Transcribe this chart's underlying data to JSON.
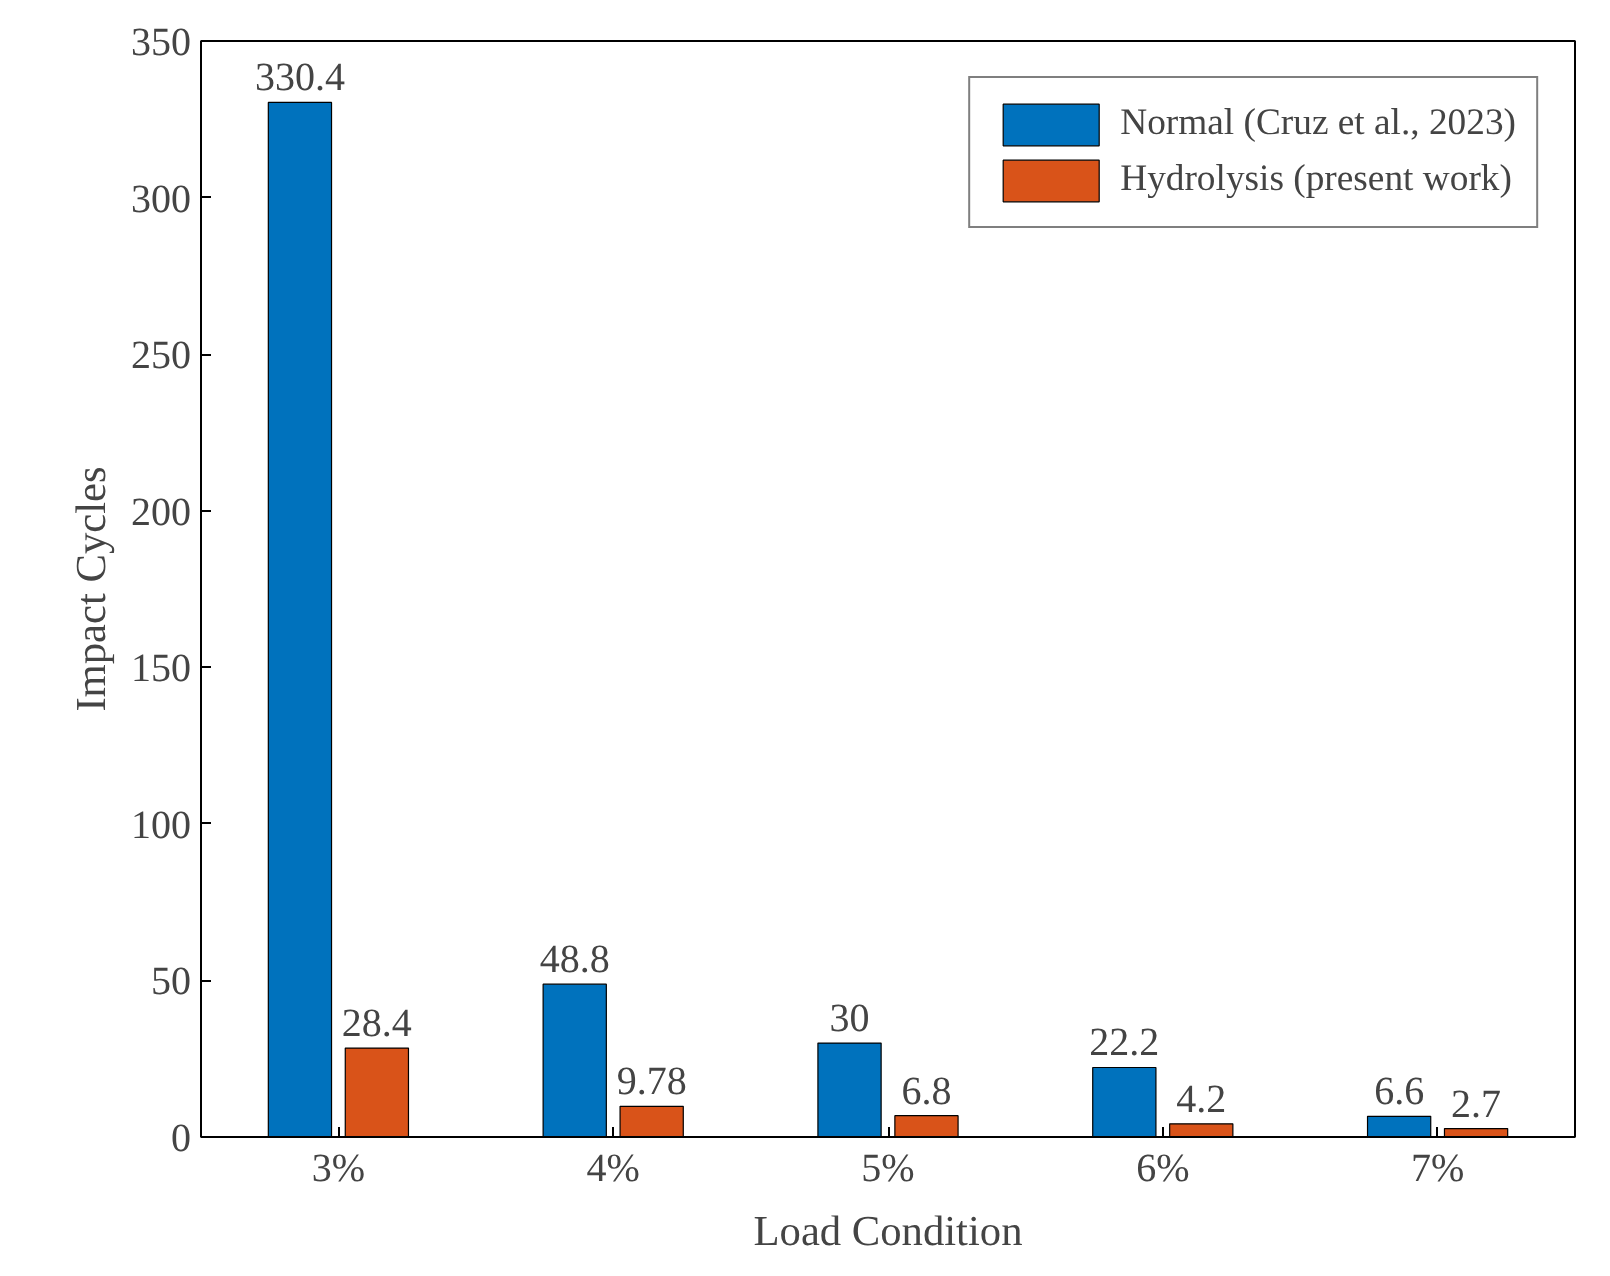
{
  "chart_data": {
    "type": "bar",
    "xlabel": "Load Condition",
    "ylabel": "Impact Cycles",
    "categories": [
      "3%",
      "4%",
      "5%",
      "6%",
      "7%"
    ],
    "series": [
      {
        "name": "Normal (Cruz et al., 2023)",
        "color": "#0072bd",
        "values": [
          330.4,
          48.8,
          30,
          22.2,
          6.6
        ]
      },
      {
        "name": "Hydrolysis (present work)",
        "color": "#d95319",
        "values": [
          28.4,
          9.78,
          6.8,
          4.2,
          2.7
        ]
      }
    ],
    "ylim": [
      0,
      350
    ],
    "yticks": [
      0,
      50,
      100,
      150,
      200,
      250,
      300,
      350
    ],
    "data_labels": true,
    "legend": "top right",
    "grid": false
  }
}
